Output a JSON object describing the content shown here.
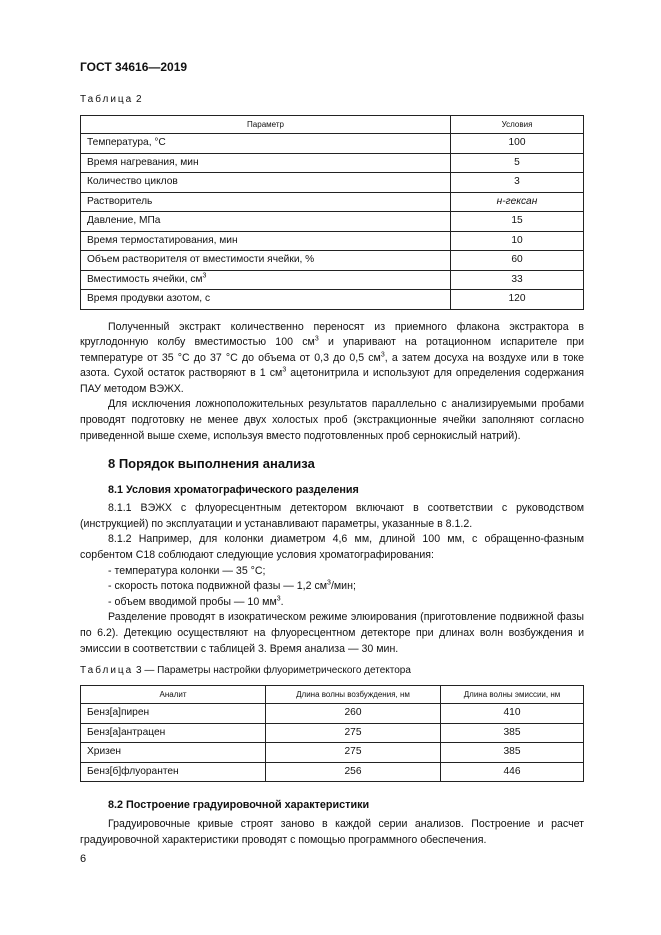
{
  "header": {
    "doc_id": "ГОСТ 34616—2019"
  },
  "table2": {
    "caption_word": "Таблица",
    "caption_num": "2",
    "columns": [
      "Параметр",
      "Условия"
    ],
    "rows": [
      [
        "Температура, °С",
        "100"
      ],
      [
        "Время нагревания, мин",
        "5"
      ],
      [
        "Количество циклов",
        "3"
      ],
      [
        "Растворитель",
        "н-гексан"
      ],
      [
        "Давление, МПа",
        "15"
      ],
      [
        "Время термостатирования, мин",
        "10"
      ],
      [
        "Объем растворителя от вместимости ячейки, %",
        "60"
      ],
      [
        "Вместимость ячейки, см",
        "33"
      ],
      [
        "Время продувки азотом, с",
        "120"
      ]
    ],
    "sup_row7": "3"
  },
  "text1": {
    "p1a": "Полученный экстракт количественно переносят из приемного флакона экстрактора в круглодонную колбу вместимостью 100 см",
    "p1b": " и упаривают на ротационном испарителе при температуре от 35 °С до 37 °С до объема от 0,3 до 0,5 см",
    "p1c": ", а затем досуха на воздухе или в токе азота. Сухой остаток растворяют в 1 см",
    "p1d": " ацетонитрила и используют для определения содержания ПАУ методом ВЭЖХ.",
    "p2": "Для исключения ложноположительных результатов параллельно с анализируемыми пробами проводят подготовку не менее двух холостых проб (экстракционные ячейки заполняют согласно приведенной выше схеме, используя вместо подготовленных проб сернокислый натрий).",
    "sup": "3"
  },
  "section8": {
    "title": "8  Порядок выполнения анализа",
    "s81": "8.1  Условия хроматографического разделения",
    "p811": "8.1.1  ВЭЖХ с флуоресцентным детектором включают в соответствии с руководством (инструкцией) по эксплуатации и устанавливают параметры, указанные в 8.1.2.",
    "p812": "8.1.2  Например, для колонки диаметром 4,6 мм, длиной 100 мм, с обращенно-фазным сорбентом С18 соблюдают следующие условия хроматографирования:",
    "li1": "- температура колонки — 35 °С;",
    "li2a": "- скорость потока подвижной фазы — 1,2 см",
    "li2b": "/мин;",
    "li3a": "- объем вводимой пробы — 10 мм",
    "li3b": ".",
    "sup": "3",
    "p_sep": "Разделение проводят в изократическом режиме элюирования (приготовление подвижной фазы по 6.2). Детекцию осуществляют на флуоресцентном детекторе при длинах волн возбуждения и эмиссии в соответствии с таблицей 3. Время анализа — 30 мин."
  },
  "table3": {
    "caption_word": "Таблица",
    "caption_rest": "3 — Параметры настройки флуориметрического детектора",
    "columns": [
      "Аналит",
      "Длина волны возбуждения, нм",
      "Длина волны эмиссии, нм"
    ],
    "rows": [
      [
        "Бенз[а]пирен",
        "260",
        "410"
      ],
      [
        "Бенз[а]антрацен",
        "275",
        "385"
      ],
      [
        "Хризен",
        "275",
        "385"
      ],
      [
        "Бенз[б]флуорантен",
        "256",
        "446"
      ]
    ]
  },
  "section82": {
    "title": "8.2  Построение градуировочной характеристики",
    "p": "Градуировочные кривые строят заново в каждой серии анализов. Построение и расчет градуировочной характеристики проводят с помощью программного обеспечения."
  },
  "footer": {
    "page_number": "6"
  }
}
